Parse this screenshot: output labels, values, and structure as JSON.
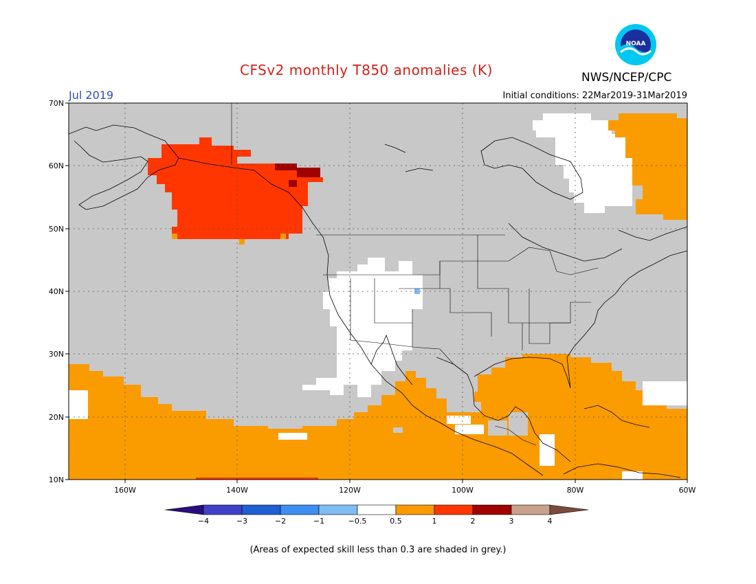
{
  "title": "CFSv2 monthly T850 anomalies (K)",
  "agency": "NWS/NCEP/CPC",
  "logo_text": "NOAA",
  "month_label": "Jul 2019",
  "initial_conditions": "Initial conditions: 22Mar2019-31Mar2019",
  "footnote": "(Areas of expected skill less than 0.3 are shaded in grey.)",
  "map": {
    "lon_range": [
      -170,
      -60
    ],
    "lat_range": [
      10,
      70
    ],
    "lat_ticks": [
      "70N",
      "60N",
      "50N",
      "40N",
      "30N",
      "20N",
      "10N"
    ],
    "lon_ticks": [
      "160W",
      "140W",
      "120W",
      "100W",
      "80W",
      "60W"
    ],
    "grid_lines": true
  },
  "colorbar": {
    "tick_labels": [
      "-4",
      "-3",
      "-2",
      "-1",
      "-0.5",
      "0.5",
      "1",
      "2",
      "3",
      "4"
    ],
    "colors": [
      "#2a0c80",
      "#4040c8",
      "#1e5fd2",
      "#3c8ef0",
      "#80bcf2",
      "#ffffff",
      "#fa9b00",
      "#ff3600",
      "#a00000",
      "#c8a08c",
      "#7a4a3c"
    ]
  },
  "colors": {
    "grey_low_skill": "#c8c8c8",
    "anom_0_5_to_1": "#fa9b00",
    "anom_1_to_2": "#ff3600",
    "anom_2_to_3": "#a00000",
    "neutral": "#ffffff"
  }
}
